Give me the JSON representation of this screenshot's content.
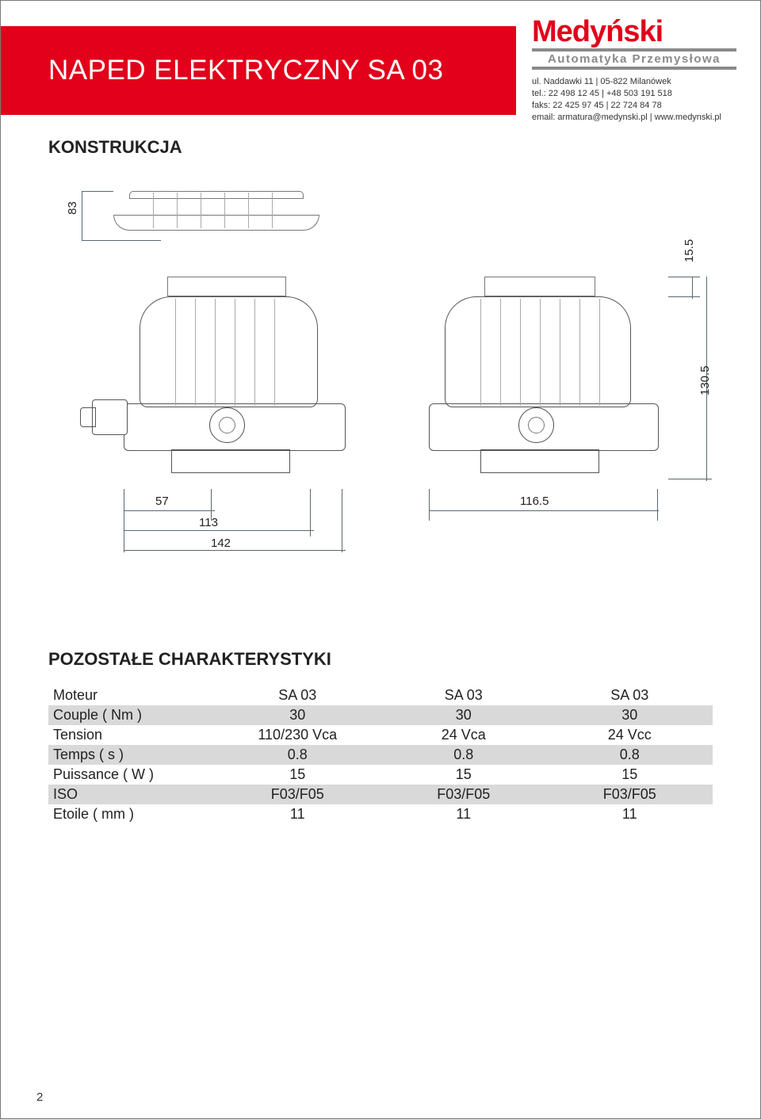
{
  "header": {
    "title": "NAPED ELEKTRYCZNY SA 03",
    "brand": "Medyński",
    "brand_sub": "Automatyka Przemysłowa",
    "contact": {
      "address": "ul. Naddawki 11 | 05-822 Milanówek",
      "tel": "tel.: 22 498 12 45 | +48 503 191 518",
      "fax": "faks: 22 425 97 45 | 22 724 84 78",
      "email": "email: armatura@medynski.pl | www.medynski.pl"
    },
    "banner_bg": "#e2001a",
    "brand_color": "#e2001a"
  },
  "sections": {
    "konstrukcja": "KONSTRUKCJA",
    "pozostale": "POZOSTAŁE CHARAKTERYSTYKI"
  },
  "diagram": {
    "dims": {
      "h_top_cap": "83",
      "left_w1": "57",
      "left_w2": "113",
      "left_w3": "142",
      "right_w": "116.5",
      "right_h1": "15.5",
      "right_h2": "130.5"
    },
    "line_color": "#606a72"
  },
  "spec_table": {
    "columns": [
      "",
      "SA 03",
      "SA 03",
      "SA 03"
    ],
    "rows": [
      {
        "label": "Moteur",
        "v": [
          "SA 03",
          "SA 03",
          "SA 03"
        ],
        "shade": false
      },
      {
        "label": "Couple ( Nm )",
        "v": [
          "30",
          "30",
          "30"
        ],
        "shade": true
      },
      {
        "label": "Tension",
        "v": [
          "110/230 Vca",
          "24 Vca",
          "24 Vcc"
        ],
        "shade": false
      },
      {
        "label": "Temps ( s )",
        "v": [
          "0.8",
          "0.8",
          "0.8"
        ],
        "shade": true
      },
      {
        "label": "Puissance ( W )",
        "v": [
          "15",
          "15",
          "15"
        ],
        "shade": false
      },
      {
        "label": "ISO",
        "v": [
          "F03/F05",
          "F03/F05",
          "F03/F05"
        ],
        "shade": true
      },
      {
        "label": "Etoile ( mm )",
        "v": [
          "11",
          "11",
          "11"
        ],
        "shade": false
      }
    ],
    "shade_color": "#d9d9d9",
    "font_size": 18
  },
  "page_number": "2"
}
